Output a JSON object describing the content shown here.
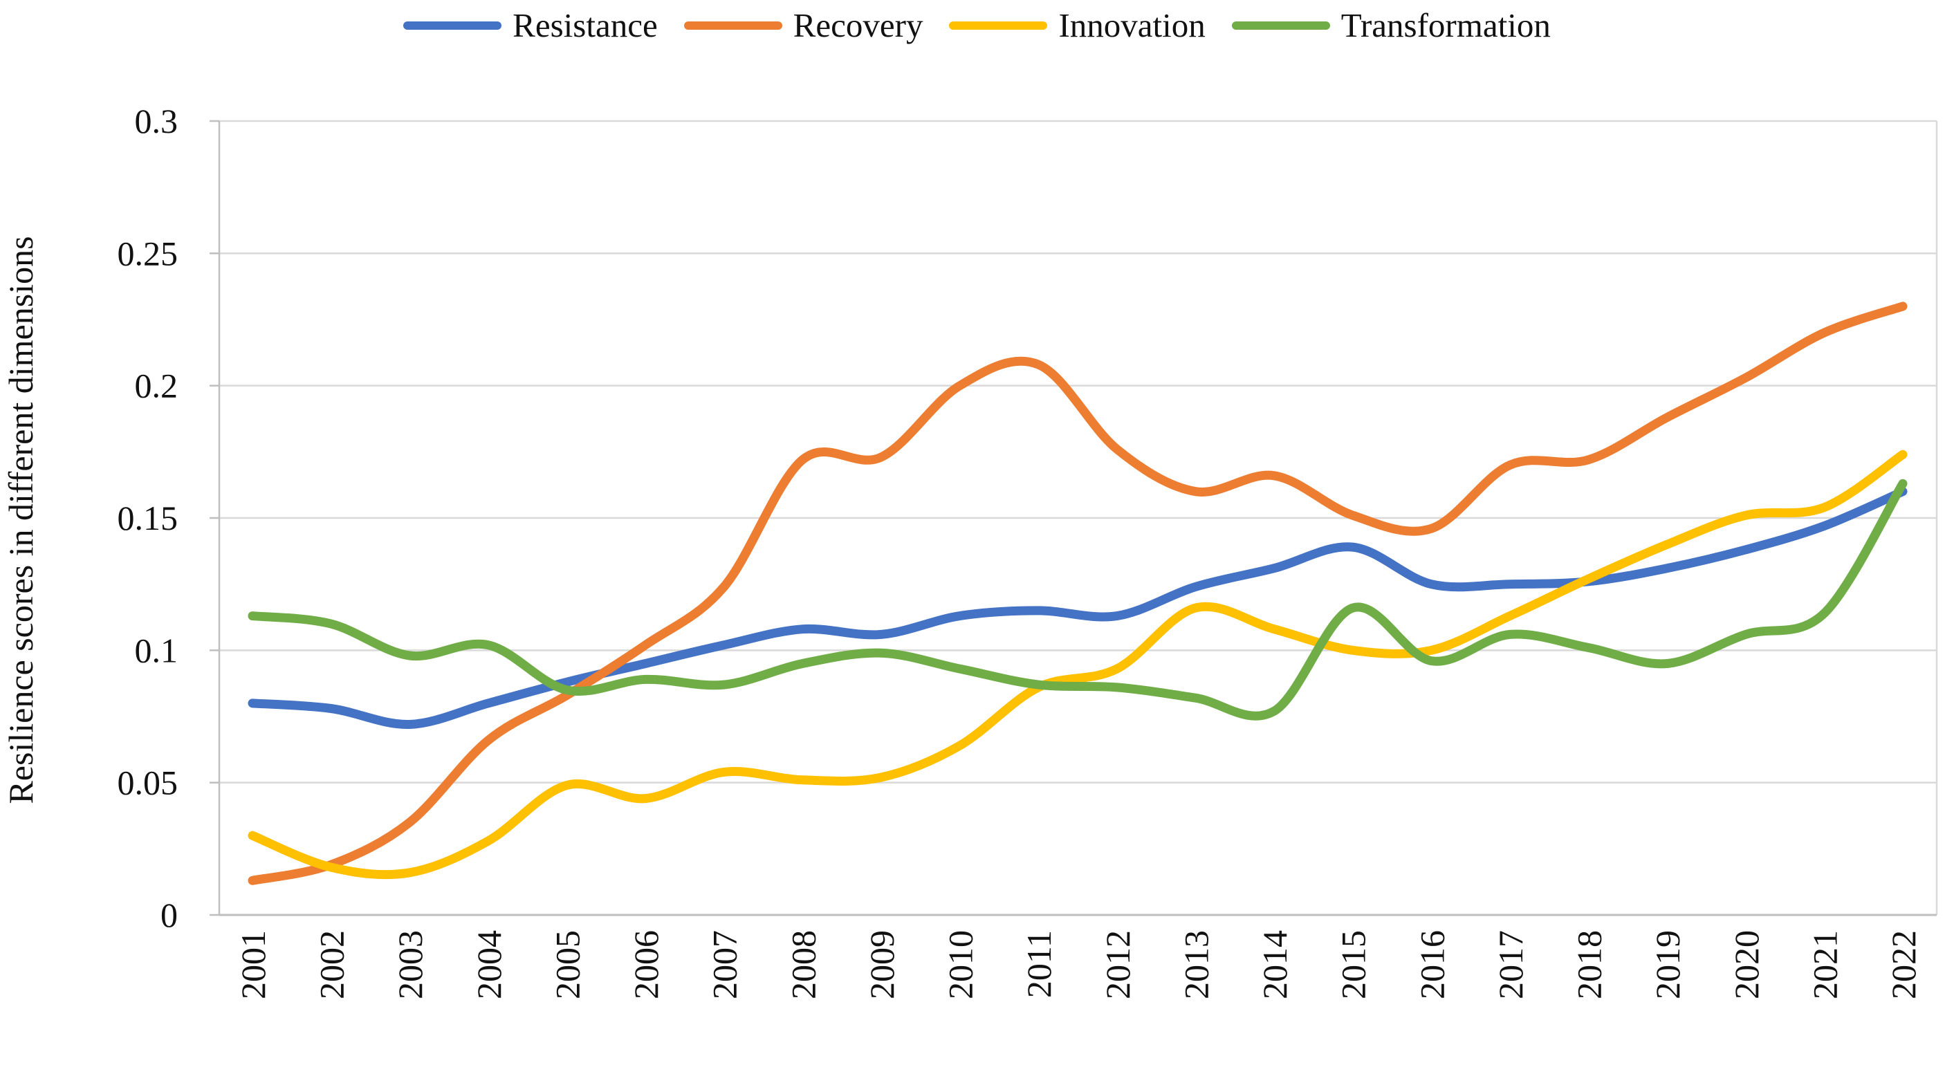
{
  "chart_data": {
    "type": "line",
    "title": "",
    "xlabel": "",
    "ylabel": "Resilience scores in different dimensions",
    "ylim": [
      0,
      0.3
    ],
    "grid": "horizontal",
    "legend_position": "top",
    "smooth_lines": true,
    "categories": [
      "2001",
      "2002",
      "2003",
      "2004",
      "2005",
      "2006",
      "2007",
      "2008",
      "2009",
      "2010",
      "2011",
      "2012",
      "2013",
      "2014",
      "2015",
      "2016",
      "2017",
      "2018",
      "2019",
      "2020",
      "2021",
      "2022"
    ],
    "y_tick_labels": [
      "0",
      "0.05",
      "0.1",
      "0.15",
      "0.2",
      "0.25",
      "0.3"
    ],
    "y_tick_values": [
      0,
      0.05,
      0.1,
      0.15,
      0.2,
      0.25,
      0.3
    ],
    "series": [
      {
        "name": "Resistance",
        "color": "#4472C4",
        "values": [
          0.08,
          0.078,
          0.072,
          0.08,
          0.088,
          0.095,
          0.102,
          0.108,
          0.106,
          0.113,
          0.115,
          0.113,
          0.124,
          0.131,
          0.139,
          0.125,
          0.125,
          0.126,
          0.131,
          0.138,
          0.147,
          0.16
        ]
      },
      {
        "name": "Recovery",
        "color": "#ED7D31",
        "values": [
          0.013,
          0.019,
          0.035,
          0.066,
          0.083,
          0.102,
          0.124,
          0.172,
          0.173,
          0.2,
          0.208,
          0.176,
          0.16,
          0.166,
          0.151,
          0.146,
          0.17,
          0.172,
          0.188,
          0.203,
          0.22,
          0.23
        ]
      },
      {
        "name": "Innovation",
        "color": "#FFC000",
        "values": [
          0.03,
          0.018,
          0.016,
          0.028,
          0.049,
          0.044,
          0.054,
          0.051,
          0.052,
          0.064,
          0.086,
          0.093,
          0.116,
          0.108,
          0.1,
          0.1,
          0.113,
          0.127,
          0.14,
          0.151,
          0.154,
          0.174
        ]
      },
      {
        "name": "Transformation",
        "color": "#70AD47",
        "values": [
          0.113,
          0.11,
          0.098,
          0.102,
          0.085,
          0.089,
          0.087,
          0.095,
          0.099,
          0.093,
          0.087,
          0.086,
          0.082,
          0.077,
          0.116,
          0.096,
          0.106,
          0.101,
          0.095,
          0.106,
          0.114,
          0.163
        ]
      }
    ],
    "colors": {
      "gridline": "#D9D9D9",
      "axis_line": "#BFBFBF",
      "tick_text": "#111111"
    }
  }
}
